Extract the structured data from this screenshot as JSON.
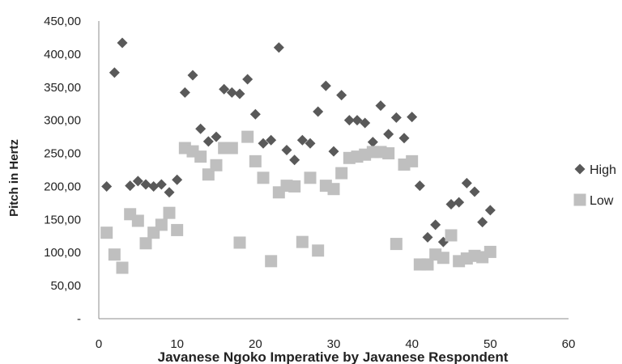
{
  "chart_data": {
    "type": "scatter",
    "title": "",
    "xlabel": "Javanese Ngoko Imperative by Javanese Respondent",
    "ylabel": "Pitch in Hertz",
    "xlim": [
      0,
      60
    ],
    "ylim": [
      0,
      450
    ],
    "x_ticks": [
      0,
      10,
      20,
      30,
      40,
      50,
      60
    ],
    "x_tick_labels": [
      "0",
      "10",
      "20",
      "30",
      "40",
      "50",
      "60"
    ],
    "y_ticks": [
      0,
      50,
      100,
      150,
      200,
      250,
      300,
      350,
      400,
      450
    ],
    "y_tick_labels": [
      "-",
      "50,00",
      "100,00",
      "150,00",
      "200,00",
      "250,00",
      "300,00",
      "350,00",
      "400,00",
      "450,00"
    ],
    "grid": false,
    "legend_position": "right",
    "series": [
      {
        "name": "High",
        "marker": "diamond",
        "color": "#595959",
        "x": [
          1,
          2,
          3,
          4,
          5,
          6,
          7,
          8,
          9,
          10,
          11,
          12,
          13,
          14,
          15,
          16,
          17,
          18,
          19,
          20,
          21,
          22,
          23,
          24,
          25,
          26,
          27,
          28,
          29,
          30,
          31,
          32,
          33,
          34,
          35,
          36,
          37,
          38,
          39,
          40,
          41,
          42,
          43,
          44,
          45,
          46,
          47,
          48,
          49,
          50
        ],
        "y": [
          200,
          372,
          417,
          201,
          208,
          203,
          200,
          203,
          191,
          210,
          342,
          368,
          287,
          268,
          275,
          347,
          342,
          340,
          362,
          309,
          265,
          270,
          410,
          255,
          240,
          270,
          265,
          313,
          352,
          253,
          338,
          300,
          300,
          296,
          267,
          322,
          279,
          304,
          273,
          305,
          201,
          123,
          142,
          116,
          173,
          176,
          205,
          192,
          146,
          164
        ]
      },
      {
        "name": "Low",
        "marker": "square",
        "color": "#bfbfbf",
        "x": [
          1,
          2,
          3,
          4,
          5,
          6,
          7,
          8,
          9,
          10,
          11,
          12,
          13,
          14,
          15,
          16,
          17,
          18,
          19,
          20,
          21,
          22,
          23,
          24,
          25,
          26,
          27,
          28,
          29,
          30,
          31,
          32,
          33,
          34,
          35,
          36,
          37,
          38,
          39,
          40,
          41,
          42,
          43,
          44,
          45,
          46,
          47,
          48,
          49,
          50
        ],
        "y": [
          130,
          97,
          77,
          158,
          148,
          114,
          130,
          142,
          160,
          134,
          258,
          253,
          245,
          218,
          232,
          258,
          258,
          115,
          275,
          238,
          213,
          87,
          191,
          201,
          200,
          116,
          213,
          103,
          201,
          196,
          220,
          243,
          245,
          248,
          252,
          252,
          250,
          113,
          233,
          238,
          82,
          82,
          97,
          92,
          126,
          87,
          91,
          95,
          93,
          101
        ]
      }
    ]
  }
}
